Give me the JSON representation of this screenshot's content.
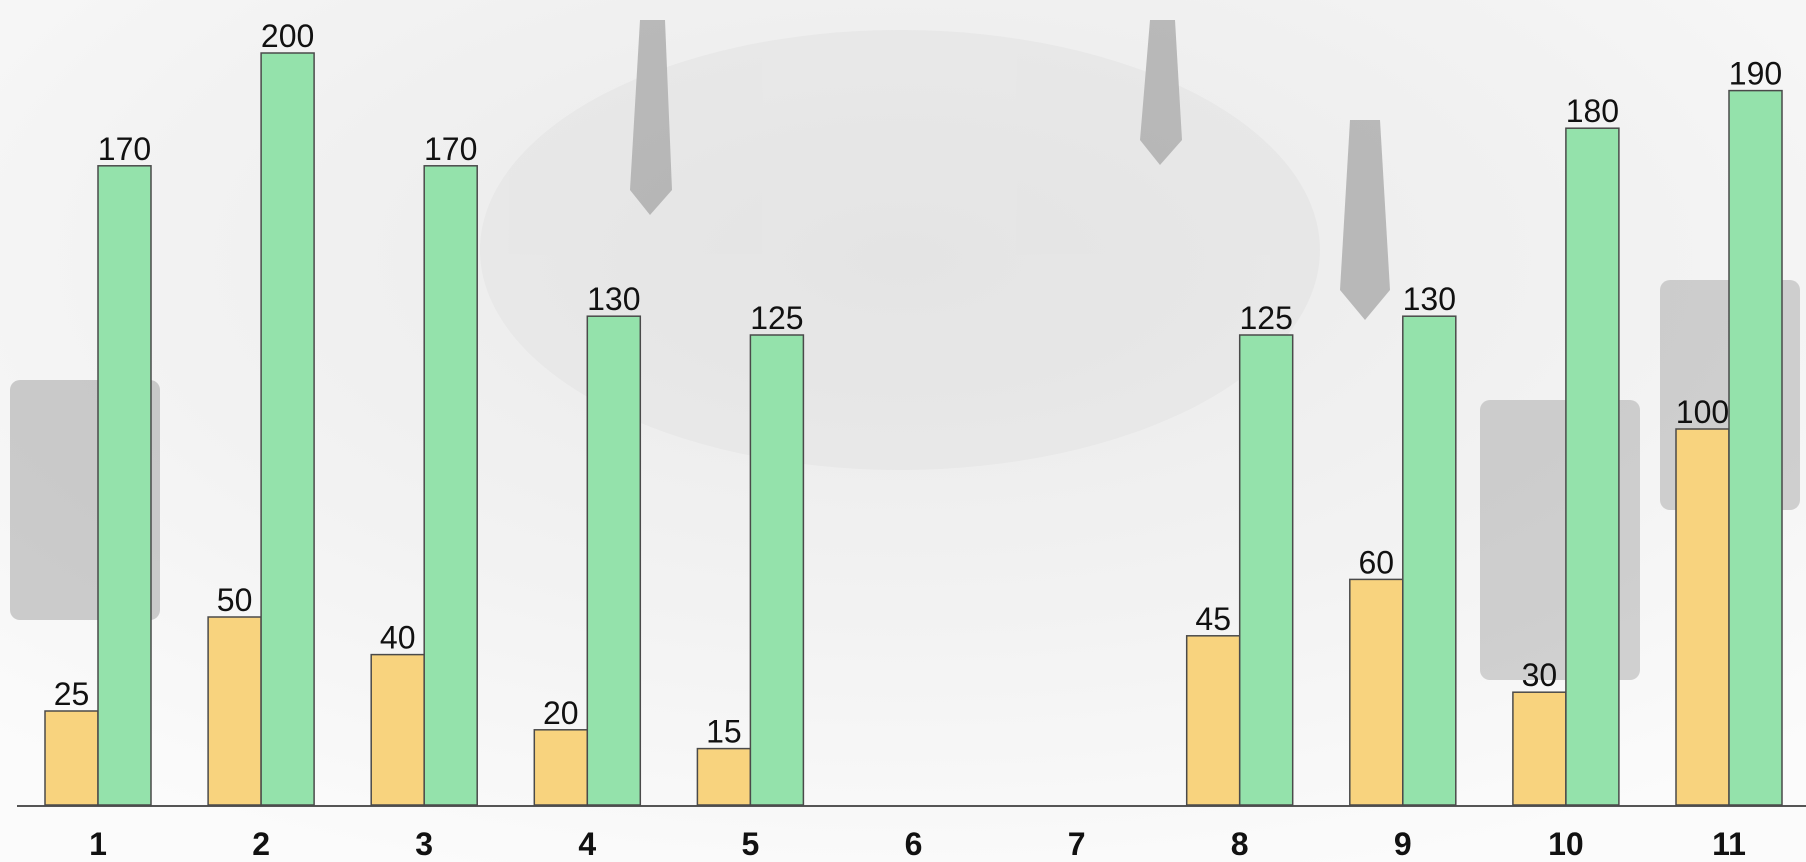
{
  "chart_data": {
    "type": "bar",
    "categories": [
      "1",
      "2",
      "3",
      "4",
      "5",
      "6",
      "7",
      "8",
      "9",
      "10",
      "11"
    ],
    "series": [
      {
        "color": "#f8d37e",
        "values": [
          25,
          50,
          40,
          20,
          15,
          null,
          null,
          45,
          60,
          30,
          100
        ]
      },
      {
        "color": "#94e2ab",
        "values": [
          170,
          200,
          170,
          130,
          125,
          null,
          null,
          125,
          130,
          180,
          190
        ]
      }
    ]
  }
}
